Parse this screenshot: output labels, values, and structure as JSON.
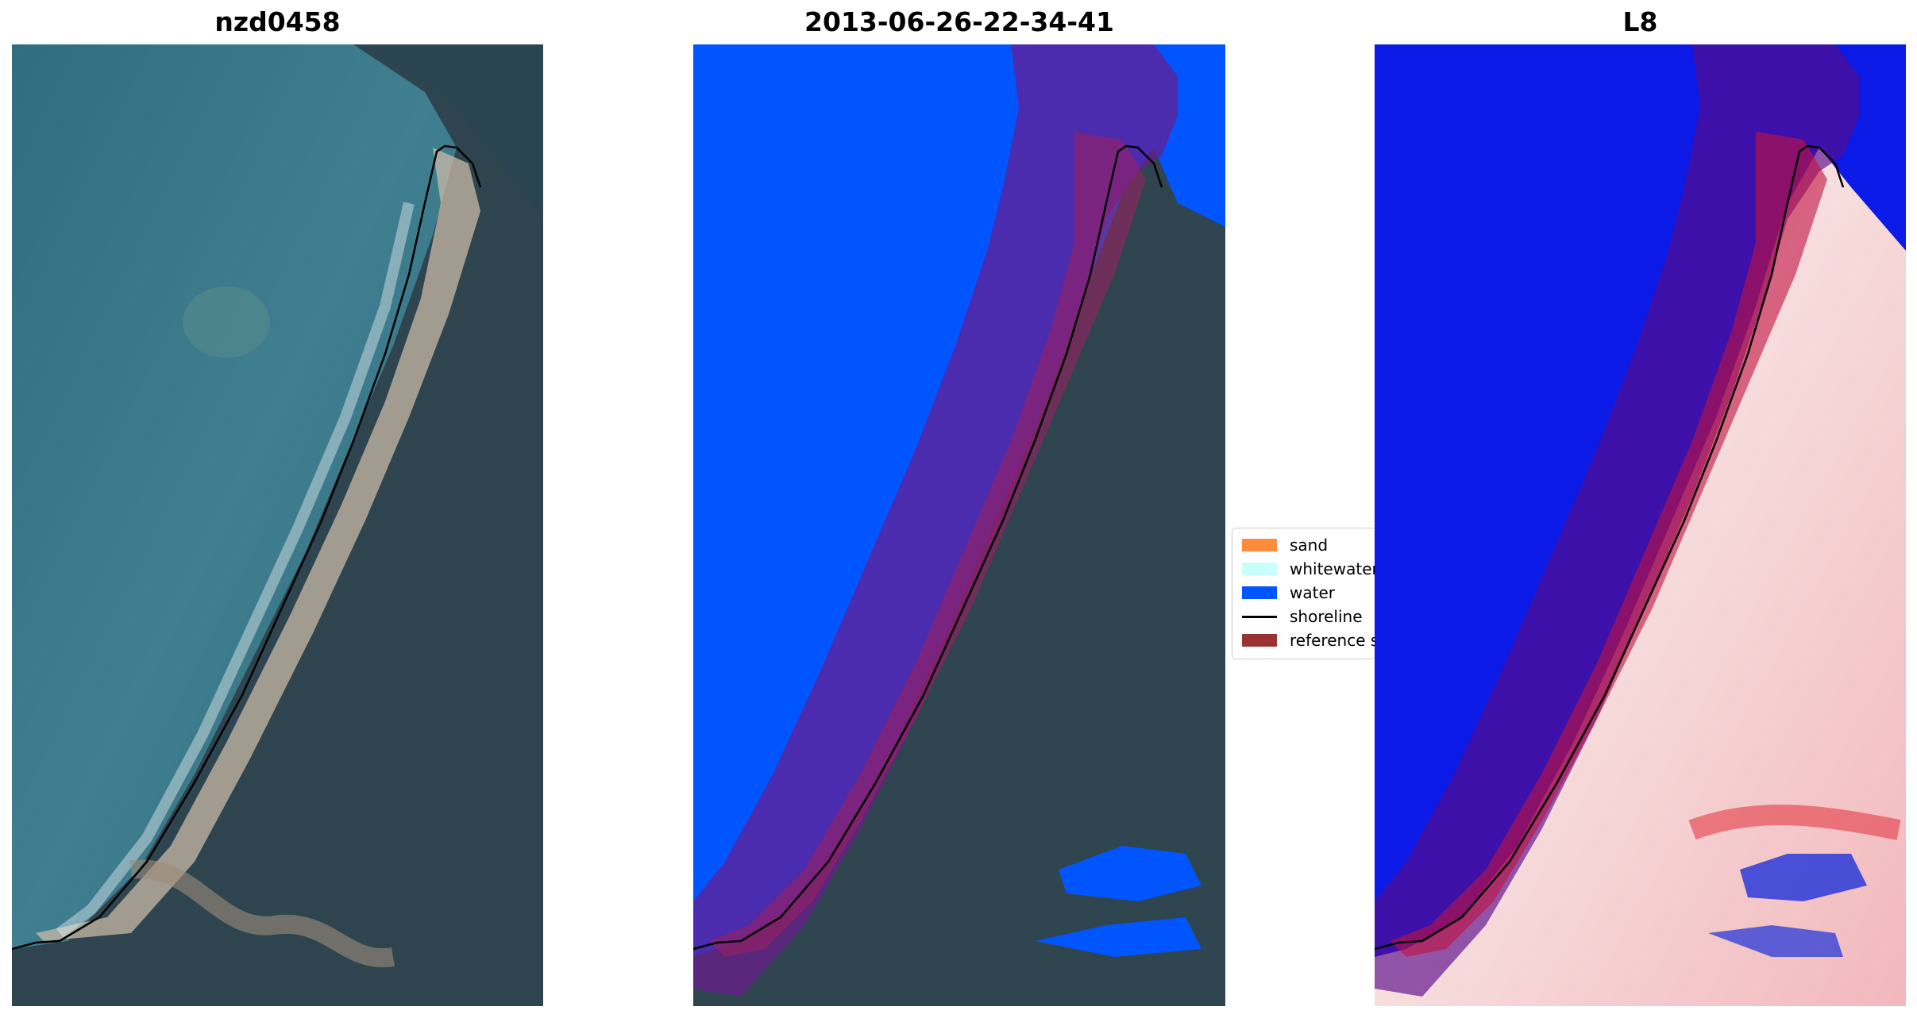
{
  "panels": [
    {
      "title": "nzd0458"
    },
    {
      "title": "2013-06-26-22-34-41"
    },
    {
      "title": "L8"
    }
  ],
  "legend": {
    "items": [
      {
        "label": "sand",
        "color": "#ff8c3a",
        "kind": "patch"
      },
      {
        "label": "whitewater",
        "color": "#c8fffd",
        "kind": "patch"
      },
      {
        "label": "water",
        "color": "#0055ff",
        "kind": "patch"
      },
      {
        "label": "shoreline",
        "color": "#000000",
        "kind": "line"
      },
      {
        "label": "reference shoreline buffer",
        "color": "#993333",
        "kind": "patch"
      }
    ]
  },
  "colors": {
    "ocean": "#3b7a8c",
    "land": "#2c3f46",
    "water_class": "#0055ff",
    "buffer": "#8a1a3a",
    "index_low": "#0b1ae6",
    "index_high": "#e23a45"
  }
}
